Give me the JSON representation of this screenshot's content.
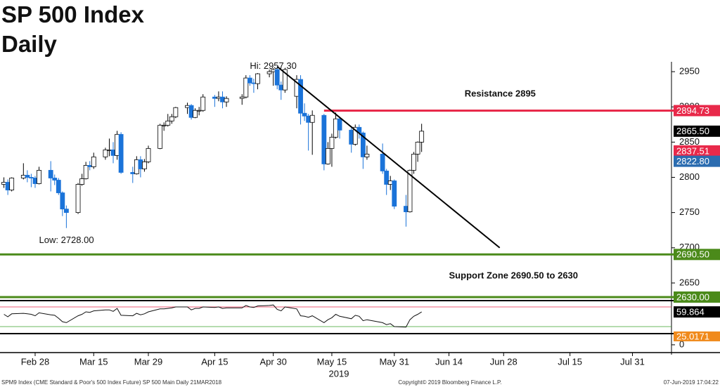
{
  "chart_data": {
    "type": "candlestick",
    "title": "SP 500 Index",
    "subtitle": "Daily",
    "x": [
      "2019-02-20",
      "2019-02-21",
      "2019-02-22",
      "2019-02-25",
      "2019-02-26",
      "2019-02-27",
      "2019-02-28",
      "2019-03-01",
      "2019-03-04",
      "2019-03-05",
      "2019-03-06",
      "2019-03-07",
      "2019-03-08",
      "2019-03-11",
      "2019-03-12",
      "2019-03-13",
      "2019-03-14",
      "2019-03-15",
      "2019-03-18",
      "2019-03-19",
      "2019-03-20",
      "2019-03-21",
      "2019-03-22",
      "2019-03-25",
      "2019-03-26",
      "2019-03-27",
      "2019-03-28",
      "2019-03-29",
      "2019-04-01",
      "2019-04-02",
      "2019-04-03",
      "2019-04-04",
      "2019-04-05",
      "2019-04-08",
      "2019-04-09",
      "2019-04-10",
      "2019-04-11",
      "2019-04-12",
      "2019-04-15",
      "2019-04-16",
      "2019-04-17",
      "2019-04-18",
      "2019-04-22",
      "2019-04-23",
      "2019-04-24",
      "2019-04-25",
      "2019-04-26",
      "2019-04-29",
      "2019-04-30",
      "2019-05-01",
      "2019-05-02",
      "2019-05-03",
      "2019-05-06",
      "2019-05-07",
      "2019-05-08",
      "2019-05-09",
      "2019-05-10",
      "2019-05-13",
      "2019-05-14",
      "2019-05-15",
      "2019-05-16",
      "2019-05-17",
      "2019-05-20",
      "2019-05-21",
      "2019-05-22",
      "2019-05-23",
      "2019-05-24",
      "2019-05-28",
      "2019-05-29",
      "2019-05-30",
      "2019-05-31",
      "2019-06-03",
      "2019-06-04",
      "2019-06-05",
      "2019-06-06",
      "2019-06-07"
    ],
    "ohlc": [
      [
        2790,
        2800,
        2785,
        2793
      ],
      [
        2793,
        2797,
        2775,
        2782
      ],
      [
        2782,
        2800,
        2780,
        2799
      ],
      [
        2799,
        2820,
        2797,
        2803
      ],
      [
        2803,
        2810,
        2793,
        2800
      ],
      [
        2800,
        2805,
        2786,
        2799
      ],
      [
        2799,
        2802,
        2785,
        2791
      ],
      [
        2791,
        2815,
        2790,
        2810
      ],
      [
        2810,
        2823,
        2780,
        2799
      ],
      [
        2799,
        2804,
        2789,
        2796
      ],
      [
        2796,
        2799,
        2775,
        2778
      ],
      [
        2778,
        2780,
        2745,
        2755
      ],
      [
        2755,
        2760,
        2728,
        2750
      ],
      [
        2750,
        2792,
        2748,
        2790
      ],
      [
        2790,
        2805,
        2788,
        2798
      ],
      [
        2798,
        2822,
        2797,
        2817
      ],
      [
        2817,
        2823,
        2810,
        2815
      ],
      [
        2815,
        2835,
        2812,
        2829
      ],
      [
        2829,
        2842,
        2825,
        2839
      ],
      [
        2839,
        2855,
        2830,
        2839
      ],
      [
        2839,
        2850,
        2820,
        2831
      ],
      [
        2831,
        2866,
        2825,
        2861
      ],
      [
        2861,
        2864,
        2805,
        2807
      ],
      [
        2807,
        2815,
        2792,
        2805
      ],
      [
        2805,
        2830,
        2804,
        2825
      ],
      [
        2825,
        2830,
        2800,
        2812
      ],
      [
        2812,
        2826,
        2808,
        2822
      ],
      [
        2822,
        2845,
        2820,
        2841
      ],
      [
        2841,
        2876,
        2840,
        2874
      ],
      [
        2874,
        2878,
        2866,
        2874
      ],
      [
        2874,
        2890,
        2872,
        2880
      ],
      [
        2880,
        2890,
        2876,
        2886
      ],
      [
        2886,
        2900,
        2884,
        2899
      ],
      [
        2899,
        2906,
        2890,
        2902
      ],
      [
        2902,
        2904,
        2882,
        2885
      ],
      [
        2885,
        2898,
        2884,
        2895
      ],
      [
        2895,
        2900,
        2888,
        2895
      ],
      [
        2895,
        2918,
        2893,
        2914
      ],
      [
        2914,
        2917,
        2900,
        2912
      ],
      [
        2912,
        2922,
        2908,
        2914
      ],
      [
        2914,
        2922,
        2898,
        2907
      ],
      [
        2907,
        2915,
        2900,
        2912
      ],
      [
        2912,
        2918,
        2903,
        2914
      ],
      [
        2914,
        2945,
        2912,
        2941
      ],
      [
        2941,
        2945,
        2930,
        2934
      ],
      [
        2934,
        2940,
        2920,
        2933
      ],
      [
        2933,
        2948,
        2925,
        2947
      ],
      [
        2947,
        2953,
        2942,
        2950
      ],
      [
        2950,
        2955,
        2930,
        2953
      ],
      [
        2953,
        2957.3,
        2925,
        2931
      ],
      [
        2931,
        2936,
        2910,
        2924
      ],
      [
        2924,
        2955,
        2920,
        2953
      ],
      [
        2915,
        2945,
        2898,
        2939
      ],
      [
        2939,
        2945,
        2875,
        2891
      ],
      [
        2891,
        2905,
        2880,
        2887
      ],
      [
        2887,
        2890,
        2838,
        2878
      ],
      [
        2878,
        2895,
        2832,
        2888
      ],
      [
        2888,
        2890,
        2810,
        2819
      ],
      [
        2819,
        2850,
        2818,
        2841
      ],
      [
        2841,
        2862,
        2815,
        2857
      ],
      [
        2857,
        2892,
        2855,
        2883
      ],
      [
        2883,
        2886,
        2855,
        2867
      ],
      [
        2867,
        2870,
        2835,
        2847
      ],
      [
        2847,
        2875,
        2845,
        2871
      ],
      [
        2871,
        2875,
        2855,
        2863
      ],
      [
        2863,
        2865,
        2812,
        2829
      ],
      [
        2829,
        2845,
        2825,
        2833
      ],
      [
        2833,
        2848,
        2805,
        2809
      ],
      [
        2809,
        2812,
        2775,
        2790
      ],
      [
        2790,
        2802,
        2782,
        2795
      ],
      [
        2795,
        2797,
        2755,
        2759
      ],
      [
        2759,
        2775,
        2730,
        2751
      ],
      [
        2751,
        2811,
        2750,
        2810
      ],
      [
        2810,
        2836,
        2805,
        2833
      ],
      [
        2833,
        2851,
        2822,
        2850
      ],
      [
        2850,
        2876,
        2836,
        2865.5
      ]
    ],
    "up_color": "#ffffff",
    "down_color": "#1a73d9",
    "xlim": [
      "2019-02-19",
      "2019-08-10"
    ],
    "xticks": [
      {
        "value": "2019-02-28",
        "label": "Feb 28"
      },
      {
        "value": "2019-03-15",
        "label": "Mar 15"
      },
      {
        "value": "2019-03-29",
        "label": "Mar 29"
      },
      {
        "value": "2019-04-15",
        "label": "Apr 15"
      },
      {
        "value": "2019-04-30",
        "label": "Apr 30"
      },
      {
        "value": "2019-05-15",
        "label": "May 15"
      },
      {
        "value": "2019-05-31",
        "label": "May 31"
      },
      {
        "value": "2019-06-14",
        "label": "Jun 14"
      },
      {
        "value": "2019-06-28",
        "label": "Jun 28"
      },
      {
        "value": "2019-07-15",
        "label": "Jul 15"
      },
      {
        "value": "2019-07-31",
        "label": "Jul 31"
      }
    ],
    "xlabel": "2019",
    "ylim": [
      2625,
      2964
    ],
    "yticks": [
      2650,
      2700,
      2750,
      2800,
      2850,
      2900,
      2950
    ],
    "levels": [
      {
        "value": 2894.73,
        "from": "2019-05-13",
        "color": "#e8294a"
      },
      {
        "value": 2690.5,
        "label": "2690.50",
        "color": "#4b8a1a"
      },
      {
        "value": 2630,
        "label": "2630.00",
        "color": "#4b8a1a"
      }
    ],
    "price_labels": [
      {
        "value": 2865.5,
        "label": "2865.50",
        "color": "#000000"
      },
      {
        "value": 2837.51,
        "color": "#e8294a"
      },
      {
        "value": 2822.8,
        "label": "2822.80",
        "color": "#2b6cb0"
      }
    ],
    "trendline": {
      "x": [
        "2019-05-01",
        "2019-06-27"
      ],
      "y": [
        2957.3,
        2700
      ],
      "color": "#000000"
    },
    "annotations": [
      {
        "text": "Hi: 2957.30",
        "x": "2019-04-24",
        "y": 2957.3
      },
      {
        "text": "Low: 2728.00",
        "x": "2019-03-01",
        "y": 2728
      },
      {
        "text": "Resistance 2895",
        "x": "2019-06-18",
        "y": 2918
      },
      {
        "text": "Support Zone 2690.50 to 2630",
        "x": "2019-06-14",
        "y": 2660
      }
    ],
    "rsi": {
      "ylim": [
        20,
        80
      ],
      "levels": [
        {
          "value": 70,
          "color": "#e8294a"
        },
        {
          "value": 30,
          "color": "#3aa02a"
        }
      ],
      "color": "#111111",
      "values": [
        55,
        50,
        56,
        57,
        56,
        55,
        52,
        58,
        54,
        53,
        47,
        40,
        38,
        52,
        55,
        60,
        59,
        62,
        64,
        64,
        61,
        67,
        53,
        52,
        57,
        54,
        56,
        60,
        66,
        66,
        67,
        68,
        70,
        70,
        64,
        67,
        67,
        70,
        69,
        70,
        67,
        68,
        68,
        73,
        70,
        69,
        72,
        73,
        74,
        65,
        62,
        70,
        66,
        52,
        51,
        49,
        52,
        38,
        44,
        48,
        55,
        51,
        46,
        53,
        51,
        42,
        44,
        38,
        34,
        36,
        30,
        29,
        44,
        51,
        55,
        59.864
      ]
    },
    "stoch": {
      "ylim": [
        -19,
        27
      ],
      "yticks": [
        0
      ],
      "value": 25.0171,
      "color": "#f08a1c"
    },
    "footer": {
      "left": "SPM9 Index (CME Standard & Poor's 500 Index Future) SP 500 Main  Daily 21MAR2018",
      "center": "Copyright© 2019 Bloomberg Finance L.P.",
      "right": "07-Jun-2019 17:04:22"
    }
  }
}
